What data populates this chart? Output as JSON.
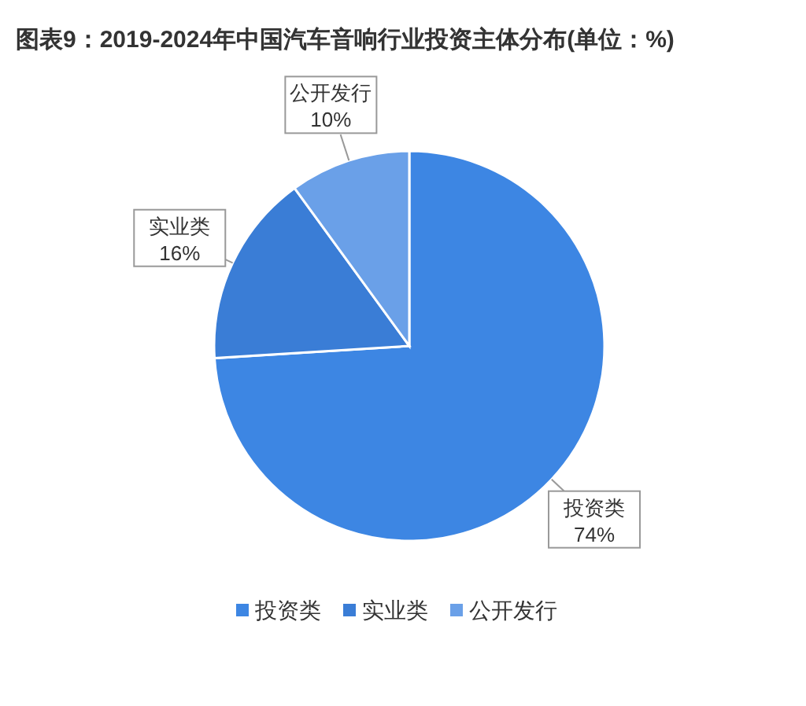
{
  "chart_data": {
    "type": "pie",
    "title": "图表9：2019-2024年中国汽车音响行业投资主体分布(单位：%)",
    "categories": [
      "投资类",
      "实业类",
      "公开发行"
    ],
    "values": [
      74,
      16,
      10
    ],
    "colors": [
      "#3d86e3",
      "#3a7dd6",
      "#6aa0e8"
    ],
    "value_labels": [
      "74%",
      "16%",
      "10%"
    ],
    "legend": "bottom"
  }
}
